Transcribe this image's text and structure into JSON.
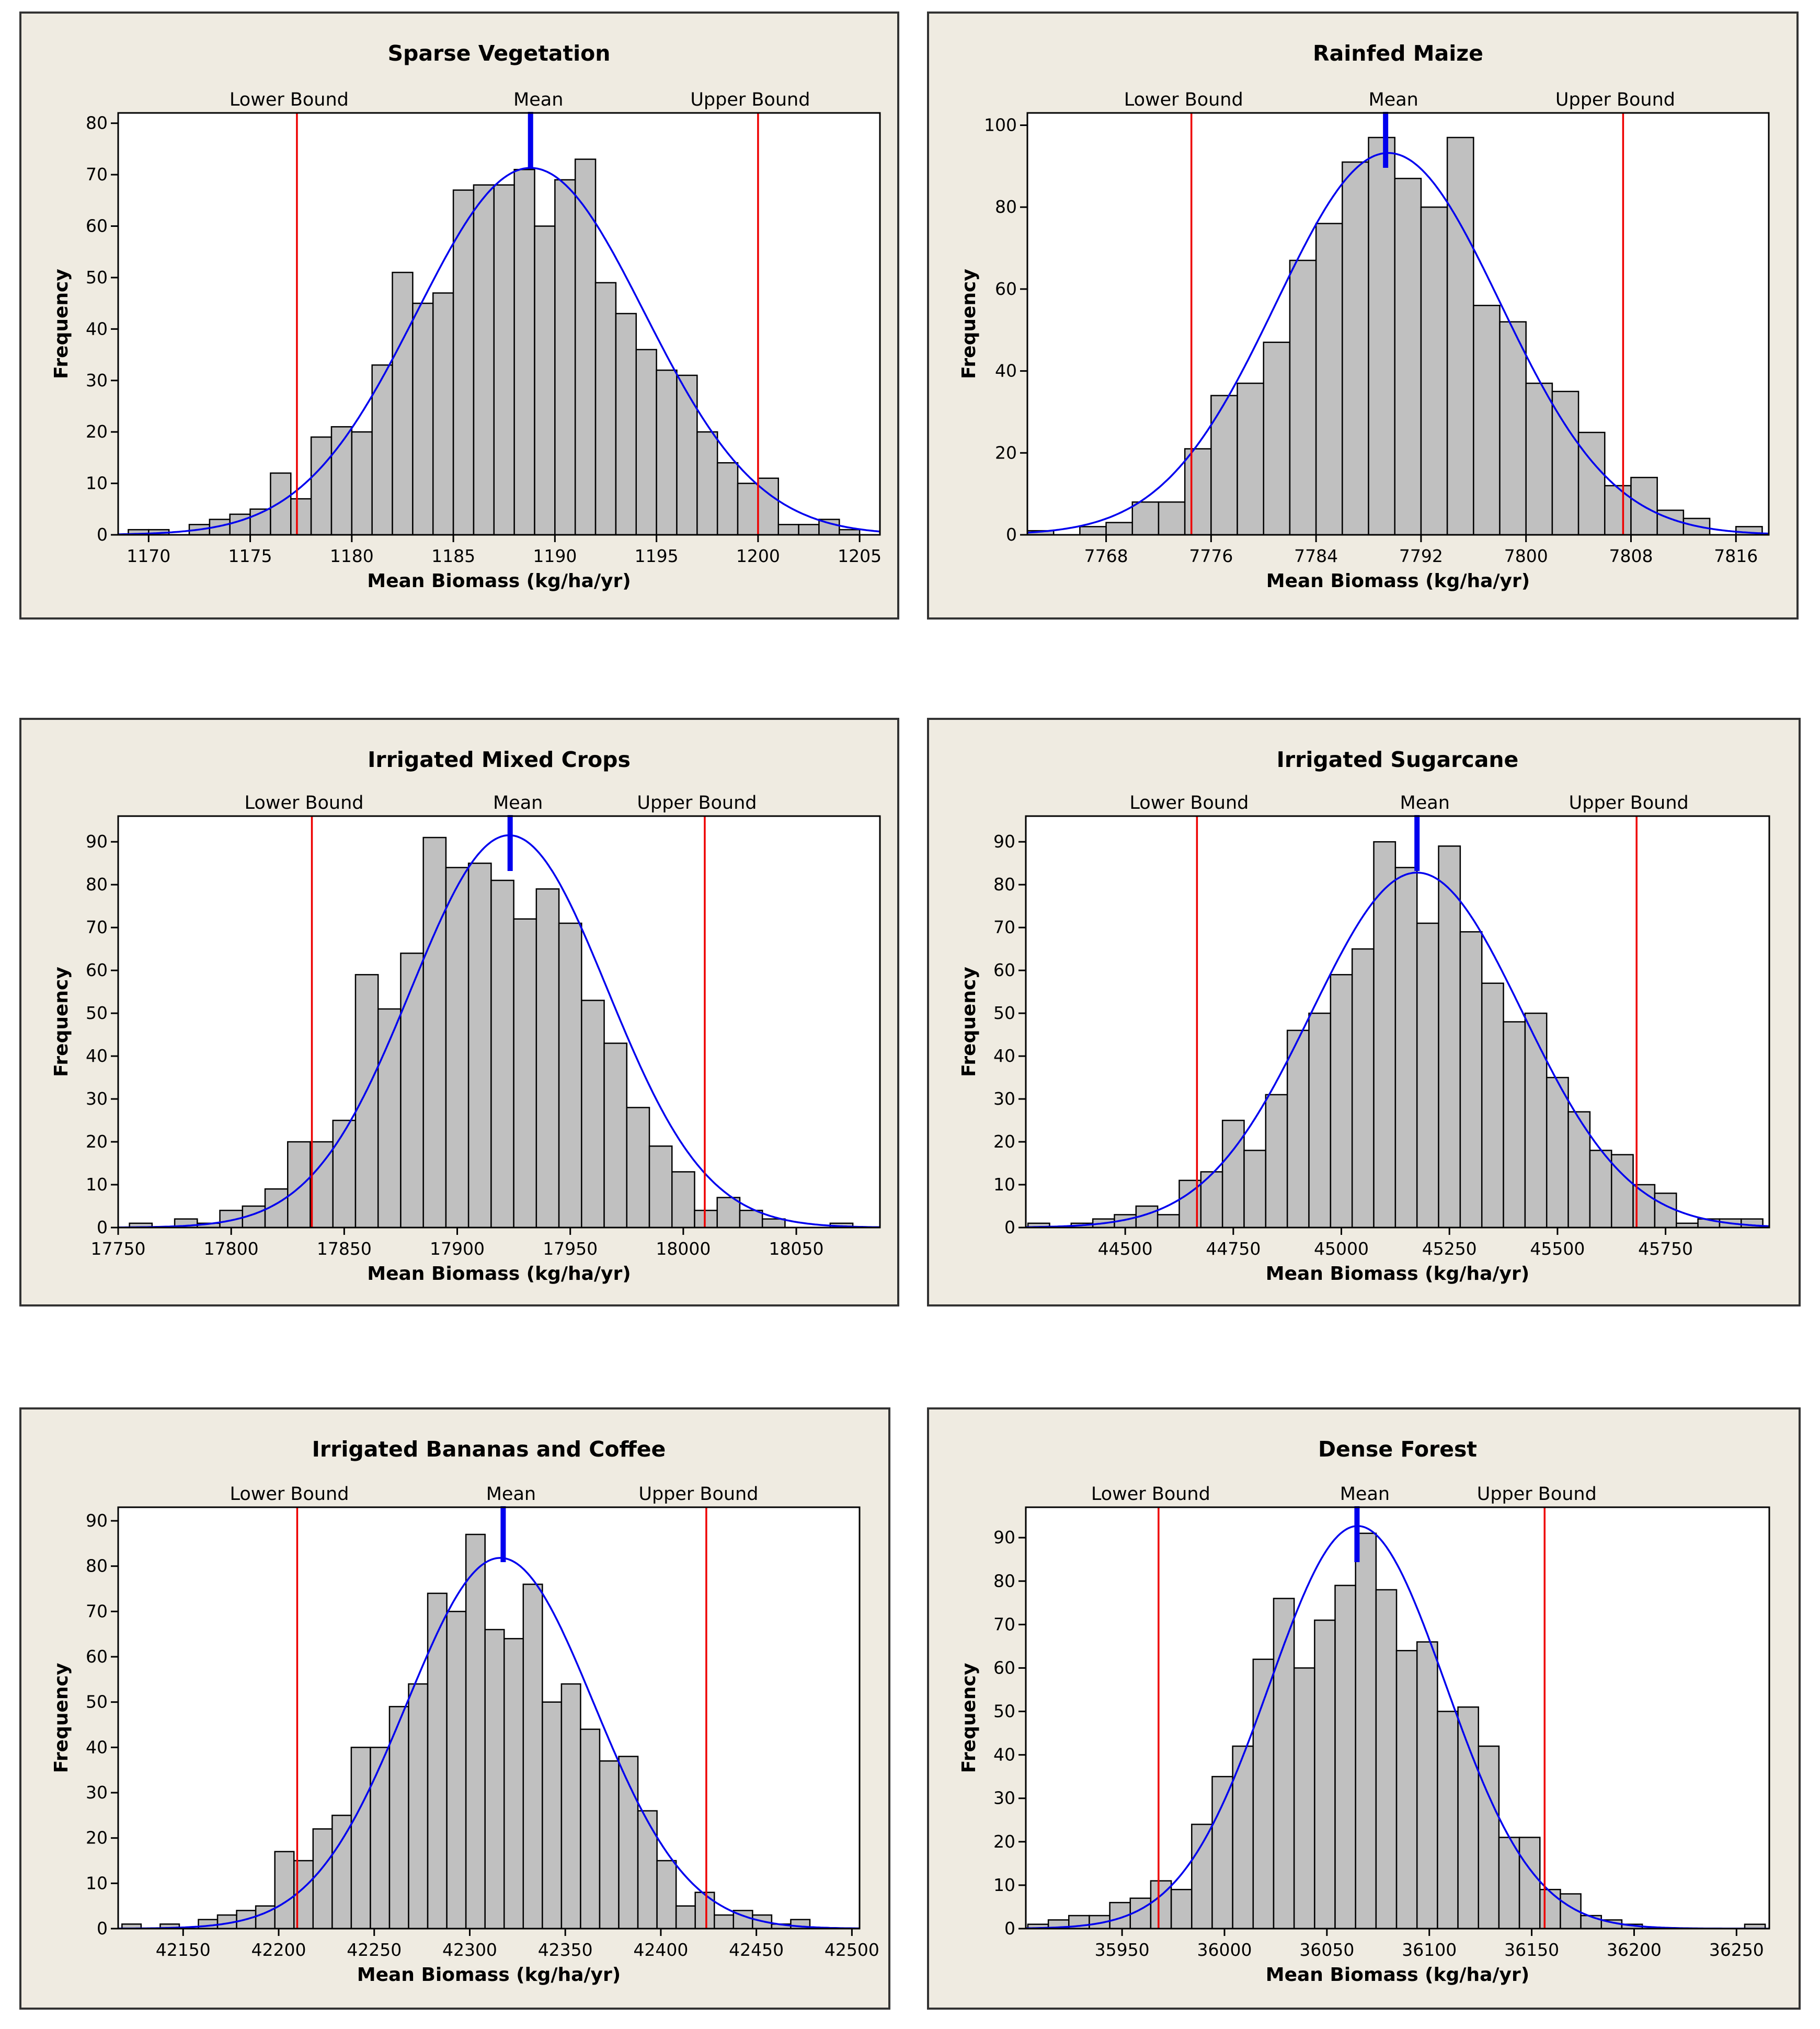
{
  "chart_data": [
    {
      "type": "bar",
      "title": "Sparse Vegetation",
      "xlabel": "Mean Biomass (kg/ha/yr)",
      "ylabel": "Frequency",
      "xlim": [
        1168.5,
        1206
      ],
      "ylim": [
        0,
        82
      ],
      "xticks": [
        1170,
        1175,
        1180,
        1185,
        1190,
        1195,
        1200,
        1205
      ],
      "yticks": [
        0,
        10,
        20,
        30,
        40,
        50,
        60,
        70,
        80
      ],
      "bin_start": 1169,
      "bin_width": 1,
      "counts": [
        1,
        1,
        0,
        2,
        3,
        4,
        5,
        12,
        7,
        19,
        21,
        20,
        33,
        51,
        45,
        47,
        67,
        68,
        68,
        71,
        60,
        69,
        73,
        49,
        43,
        36,
        32,
        31,
        20,
        14,
        10,
        11,
        2,
        2,
        3,
        1
      ],
      "fit": {
        "name": "normal",
        "mean": 1188.8,
        "sd": 5.6,
        "color": "#0000ee"
      },
      "reference_lines": {
        "lower_bound": 1177.3,
        "mean": 1188.8,
        "upper_bound": 1200.0,
        "labels": [
          "Lower Bound",
          "Mean",
          "Upper Bound"
        ]
      }
    },
    {
      "type": "bar",
      "title": "Rainfed Maize",
      "xlabel": "Mean Biomass (kg/ha/yr)",
      "ylabel": "Frequency",
      "xlim": [
        7762,
        7818.5
      ],
      "ylim": [
        0,
        103
      ],
      "xticks": [
        7768,
        7776,
        7784,
        7792,
        7800,
        7808,
        7816
      ],
      "yticks": [
        0,
        20,
        40,
        60,
        80,
        100
      ],
      "bin_start": 7762,
      "bin_width": 2,
      "counts": [
        1,
        0,
        2,
        3,
        8,
        8,
        21,
        34,
        37,
        47,
        67,
        76,
        91,
        97,
        87,
        80,
        97,
        56,
        52,
        37,
        35,
        25,
        12,
        14,
        6,
        4,
        0,
        2
      ],
      "fit": {
        "name": "normal",
        "mean": 7789.5,
        "sd": 8.55,
        "color": "#0000ee"
      },
      "reference_lines": {
        "lower_bound": 7774.5,
        "mean": 7789.3,
        "upper_bound": 7807.4,
        "labels": [
          "Lower Bound",
          "Mean",
          "Upper Bound"
        ]
      }
    },
    {
      "type": "bar",
      "title": "Irrigated Mixed Crops",
      "xlabel": "Mean Biomass (kg/ha/yr)",
      "ylabel": "Frequency",
      "xlim": [
        17750,
        18087
      ],
      "ylim": [
        0,
        96
      ],
      "xticks": [
        17750,
        17800,
        17850,
        17900,
        17950,
        18000,
        18050
      ],
      "yticks": [
        0,
        10,
        20,
        30,
        40,
        50,
        60,
        70,
        80,
        90
      ],
      "bin_start": 17755,
      "bin_width": 10,
      "counts": [
        1,
        0,
        2,
        1,
        4,
        5,
        9,
        20,
        20,
        25,
        59,
        51,
        64,
        91,
        84,
        85,
        81,
        72,
        79,
        71,
        53,
        43,
        28,
        19,
        13,
        4,
        7,
        4,
        2,
        0,
        0,
        1
      ],
      "fit": {
        "name": "normal",
        "mean": 17923,
        "sd": 43.5,
        "color": "#0000ee"
      },
      "reference_lines": {
        "lower_bound": 17835.7,
        "mean": 17923.4,
        "upper_bound": 18009.5,
        "labels": [
          "Lower Bound",
          "Mean",
          "Upper Bound"
        ]
      }
    },
    {
      "type": "bar",
      "title": "Irrigated Sugarcane",
      "xlabel": "Mean Biomass (kg/ha/yr)",
      "ylabel": "Frequency",
      "xlim": [
        44270,
        45990
      ],
      "ylim": [
        0,
        96
      ],
      "xticks": [
        44500,
        44750,
        45000,
        45250,
        45500,
        45750
      ],
      "yticks": [
        0,
        10,
        20,
        30,
        40,
        50,
        60,
        70,
        80,
        90
      ],
      "bin_start": 44275,
      "bin_width": 50,
      "counts": [
        1,
        0,
        1,
        2,
        3,
        5,
        3,
        11,
        13,
        25,
        18,
        31,
        46,
        50,
        59,
        65,
        90,
        84,
        71,
        89,
        69,
        57,
        48,
        50,
        35,
        27,
        18,
        17,
        10,
        8,
        1,
        2,
        2,
        2
      ],
      "fit": {
        "name": "normal",
        "mean": 45175,
        "sd": 244,
        "color": "#0000ee"
      },
      "reference_lines": {
        "lower_bound": 44666,
        "mean": 45175,
        "upper_bound": 45683,
        "labels": [
          "Lower Bound",
          "Mean",
          "Upper Bound"
        ]
      }
    },
    {
      "type": "bar",
      "title": "Irrigated Bananas and Coffee",
      "xlabel": "Mean Biomass (kg/ha/yr)",
      "ylabel": "Frequency",
      "xlim": [
        42116,
        42504
      ],
      "ylim": [
        0,
        93
      ],
      "xticks": [
        42150,
        42200,
        42250,
        42300,
        42350,
        42400,
        42450,
        42500
      ],
      "yticks": [
        0,
        10,
        20,
        30,
        40,
        50,
        60,
        70,
        80,
        90
      ],
      "bin_start": 42118,
      "bin_width": 10,
      "counts": [
        1,
        0,
        1,
        0,
        2,
        3,
        4,
        5,
        17,
        15,
        22,
        25,
        40,
        40,
        49,
        54,
        74,
        70,
        87,
        66,
        64,
        76,
        50,
        54,
        44,
        37,
        38,
        26,
        15,
        5,
        8,
        3,
        4,
        3,
        1,
        2
      ],
      "fit": {
        "name": "normal",
        "mean": 42316,
        "sd": 49,
        "color": "#0000ee"
      },
      "reference_lines": {
        "lower_bound": 42209.7,
        "mean": 42317.5,
        "upper_bound": 42423.8,
        "labels": [
          "Lower Bound",
          "Mean",
          "Upper Bound"
        ]
      }
    },
    {
      "type": "bar",
      "title": "Dense Forest",
      "xlabel": "Mean Biomass (kg/ha/yr)",
      "ylabel": "Frequency",
      "xlim": [
        35903,
        36266
      ],
      "ylim": [
        0,
        97
      ],
      "xticks": [
        35950,
        36000,
        36050,
        36100,
        36150,
        36200,
        36250
      ],
      "yticks": [
        0,
        10,
        20,
        30,
        40,
        50,
        60,
        70,
        80,
        90
      ],
      "bin_start": 35904,
      "bin_width": 10,
      "counts": [
        1,
        2,
        3,
        3,
        6,
        7,
        11,
        9,
        24,
        35,
        42,
        62,
        76,
        60,
        71,
        79,
        91,
        78,
        64,
        66,
        50,
        51,
        42,
        21,
        21,
        9,
        8,
        3,
        2,
        1,
        0,
        0,
        0,
        0,
        0,
        1
      ],
      "fit": {
        "name": "normal",
        "mean": 36065,
        "sd": 43,
        "color": "#0000ee"
      },
      "reference_lines": {
        "lower_bound": 35967.8,
        "mean": 36064.7,
        "upper_bound": 36156.3,
        "labels": [
          "Lower Bound",
          "Mean",
          "Upper Bound"
        ]
      }
    }
  ],
  "colors": {
    "panel_background": "#efebe1",
    "plot_background": "#ffffff",
    "bar_fill": "#c0c0c0",
    "bar_edge": "#000000",
    "fit_line": "#0000ee",
    "bound_line": "#ee0000",
    "mean_line": "#0000ee"
  }
}
